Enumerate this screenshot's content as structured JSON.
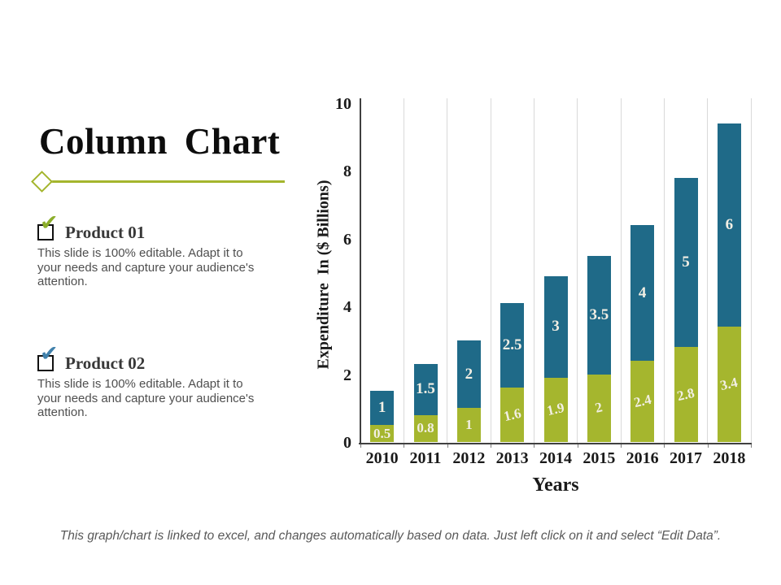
{
  "slide": {
    "title": "Column Chart",
    "products": [
      {
        "label": "Product 01",
        "check_glyph": "✔",
        "check_color": "#8cae2b",
        "description": "This slide is 100% editable. Adapt it to your needs and capture your audience's attention."
      },
      {
        "label": "Product 02",
        "check_glyph": "✔",
        "check_color": "#4080ab",
        "description": "This slide is 100% editable. Adapt it to your needs and capture your audience's attention."
      }
    ],
    "caption": "This graph/chart is linked to excel, and changes automatically based on data. Just left click on it and select “Edit Data”."
  },
  "colors": {
    "accent_green": "#a4b52d",
    "bar_green": "#a5b62e",
    "bar_teal": "#1f6a88",
    "axis_line": "#404040",
    "gridline": "#d9d9d9",
    "value_label": "#f2efe4"
  },
  "chart_data": {
    "type": "bar",
    "stacked": true,
    "title": "",
    "xlabel": "Years",
    "ylabel": "Expenditure  In ($ Billions)",
    "ylim": [
      0,
      10
    ],
    "yticks": [
      0,
      2,
      4,
      6,
      8,
      10
    ],
    "grid": "vertical",
    "legend": "none",
    "categories": [
      "2010",
      "2011",
      "2012",
      "2013",
      "2014",
      "2015",
      "2016",
      "2017",
      "2018"
    ],
    "series": [
      {
        "name": "Product 01",
        "color": "#a5b62e",
        "values": [
          0.5,
          0.8,
          1,
          1.6,
          1.9,
          2,
          2.4,
          2.8,
          3.4
        ],
        "labels": [
          "0.5",
          "0.8",
          "1",
          "1.6",
          "1.9",
          "2",
          "2.4",
          "2.8",
          "3.4"
        ]
      },
      {
        "name": "Product 02",
        "color": "#1f6a88",
        "values": [
          1,
          1.5,
          2,
          2.5,
          3,
          3.5,
          4,
          5,
          6
        ],
        "labels": [
          "1",
          "1.5",
          "2",
          "2.5",
          "3",
          "3.5",
          "4",
          "5",
          "6"
        ]
      }
    ]
  }
}
